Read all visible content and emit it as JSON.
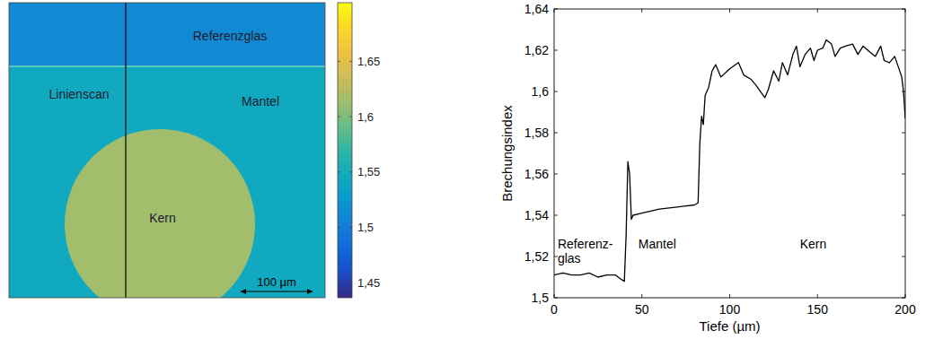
{
  "chart_data": [
    {
      "type": "heatmap",
      "regions": [
        {
          "label": "Referenzglas",
          "value": 1.511
        },
        {
          "label": "Mantel",
          "value": 1.545
        },
        {
          "label": "Kern",
          "value": 1.615
        }
      ],
      "line_scan": "Linienscan",
      "scale_bar": "100 µm",
      "colorbar": {
        "range": [
          1.4365,
          1.703
        ],
        "ticks": [
          {
            "value": 1.45,
            "label": "1,45"
          },
          {
            "value": 1.5,
            "label": "1,5"
          },
          {
            "value": 1.55,
            "label": "1,55"
          },
          {
            "value": 1.6,
            "label": "1,6"
          },
          {
            "value": 1.65,
            "label": "1,65"
          }
        ]
      }
    },
    {
      "type": "line",
      "x_label": "Tiefe (µm)",
      "y_label": "Brechungsindex",
      "color": "#000000",
      "x": [
        0,
        5,
        10,
        15,
        20,
        25,
        30,
        35,
        38,
        40,
        41,
        42,
        43,
        44,
        45,
        50,
        60,
        70,
        80,
        82,
        83,
        84,
        85,
        86,
        88,
        90,
        92,
        95,
        100,
        105,
        108,
        112,
        115,
        120,
        122,
        125,
        128,
        130,
        133,
        136,
        138,
        140,
        143,
        146,
        148,
        150,
        153,
        155,
        158,
        160,
        163,
        166,
        170,
        173,
        176,
        180,
        183,
        186,
        188,
        191,
        194,
        196,
        198,
        199,
        200
      ],
      "values": [
        1.511,
        1.512,
        1.511,
        1.511,
        1.512,
        1.51,
        1.511,
        1.511,
        1.509,
        1.508,
        1.53,
        1.566,
        1.56,
        1.538,
        1.54,
        1.541,
        1.543,
        1.544,
        1.545,
        1.546,
        1.575,
        1.588,
        1.584,
        1.598,
        1.602,
        1.61,
        1.613,
        1.607,
        1.611,
        1.614,
        1.608,
        1.606,
        1.603,
        1.597,
        1.601,
        1.61,
        1.605,
        1.614,
        1.608,
        1.618,
        1.622,
        1.612,
        1.618,
        1.621,
        1.615,
        1.62,
        1.621,
        1.625,
        1.623,
        1.617,
        1.621,
        1.622,
        1.623,
        1.618,
        1.622,
        1.619,
        1.617,
        1.622,
        1.615,
        1.614,
        1.617,
        1.612,
        1.607,
        1.6,
        1.587
      ],
      "xlim": [
        0,
        200
      ],
      "ylim": [
        1.5,
        1.64
      ],
      "xticks": [
        0,
        50,
        100,
        150,
        200
      ],
      "yticks": [
        {
          "value": 1.5,
          "label": "1,5"
        },
        {
          "value": 1.52,
          "label": "1,52"
        },
        {
          "value": 1.54,
          "label": "1,54"
        },
        {
          "value": 1.56,
          "label": "1,56"
        },
        {
          "value": 1.58,
          "label": "1,58"
        },
        {
          "value": 1.6,
          "label": "1,6"
        },
        {
          "value": 1.62,
          "label": "1,62"
        },
        {
          "value": 1.64,
          "label": "1,64"
        }
      ],
      "grid": false,
      "annotations": [
        {
          "text": [
            "Referenz-",
            "glas"
          ],
          "x": 2,
          "y": 1.524
        },
        {
          "text": [
            "Mantel"
          ],
          "x": 48,
          "y": 1.524
        },
        {
          "text": [
            "Kern"
          ],
          "x": 140,
          "y": 1.524
        }
      ]
    }
  ]
}
